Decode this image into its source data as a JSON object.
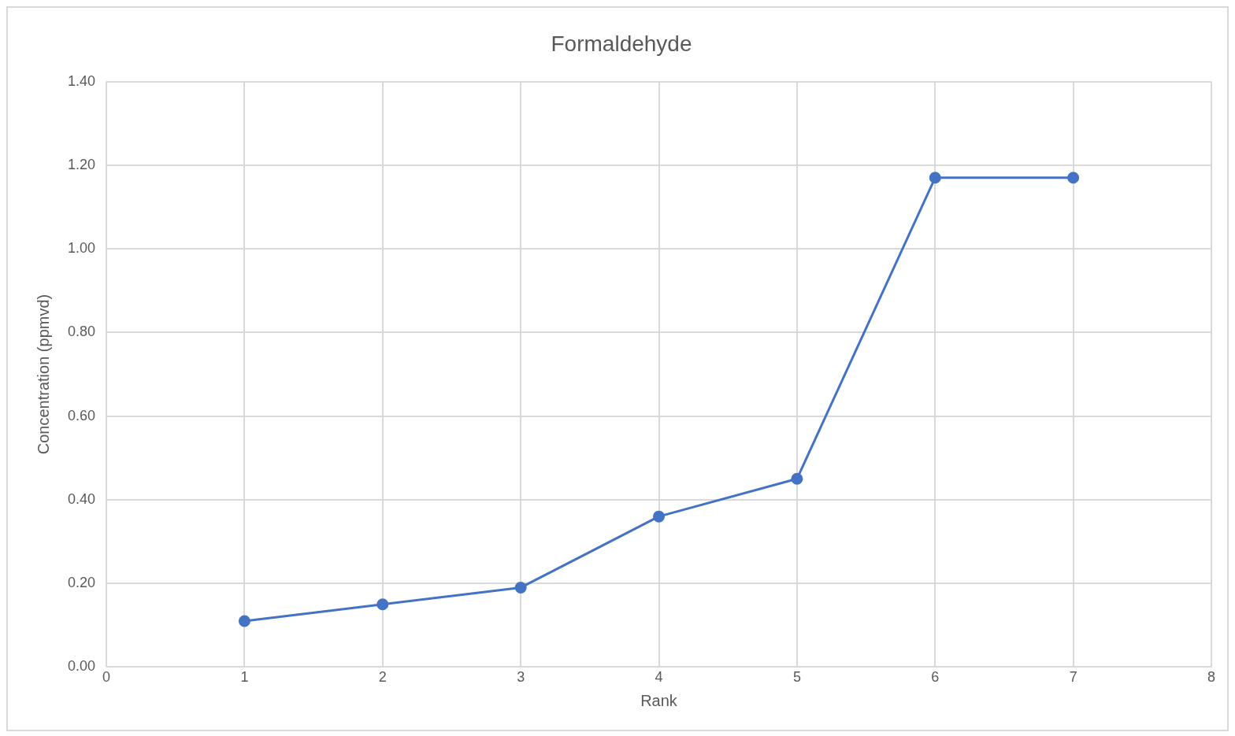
{
  "chart_data": {
    "type": "line",
    "title": "Formaldehyde",
    "xlabel": "Rank",
    "ylabel": "Concentration (ppmvd)",
    "x": [
      1,
      2,
      3,
      4,
      5,
      6,
      7
    ],
    "series": [
      {
        "color": "#4472c4",
        "values": [
          0.11,
          0.15,
          0.19,
          0.36,
          0.45,
          1.17,
          1.17
        ]
      }
    ],
    "xlim": [
      0,
      8
    ],
    "xticks": [
      0,
      1,
      2,
      3,
      4,
      5,
      6,
      7,
      8
    ],
    "ylim": [
      0,
      1.4
    ],
    "yticks": [
      {
        "value": 0,
        "label": "0.00"
      },
      {
        "value": 0.2,
        "label": "0.20"
      },
      {
        "value": 0.4,
        "label": "0.40"
      },
      {
        "value": 0.6,
        "label": "0.60"
      },
      {
        "value": 0.8,
        "label": "0.80"
      },
      {
        "value": 1,
        "label": "1.00"
      },
      {
        "value": 1.2,
        "label": "1.20"
      },
      {
        "value": 1.4,
        "label": "1.40"
      }
    ],
    "grid": true,
    "legend": false,
    "marker": "circle",
    "line_style": "solid"
  }
}
